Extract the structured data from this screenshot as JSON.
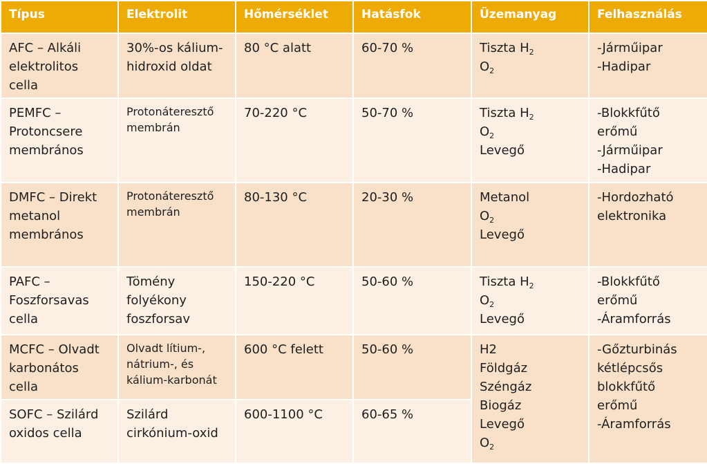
{
  "headers": [
    "Típus",
    "Elektrolit",
    "Hőmérséklet",
    "Hatásfok",
    "Üzemanyag",
    "Felhasználás"
  ],
  "rows": [
    {
      "tipus": [
        "AFC – Alkáli",
        "elektrolitos",
        "cella"
      ],
      "elektrolit": [
        "30%-os kálium-",
        "hidroxid oldat"
      ],
      "homerseklet": "80 °C alatt",
      "hatasfok": "60-70 %",
      "uzemanyag": [
        {
          "text": "Tiszta H",
          "sub": "2"
        },
        {
          "text": "O",
          "sub": "2"
        }
      ],
      "felhasznalas": [
        "-Járműipar",
        "-Hadipar"
      ]
    },
    {
      "tipus": [
        "PEMFC –",
        "Protoncsere",
        "membrános"
      ],
      "elektrolit": [
        "Protonáteresztő",
        "membrán"
      ],
      "homerseklet": "70-220 °C",
      "hatasfok": "50-70 %",
      "uzemanyag": [
        {
          "text": "Tiszta H",
          "sub": "2"
        },
        {
          "text": "O",
          "sub": "2"
        },
        {
          "text": "Levegő",
          "sub": ""
        }
      ],
      "felhasznalas": [
        "-Blokkfűtő",
        "erőmű",
        "-Járműipar",
        "-Hadipar"
      ]
    },
    {
      "tipus": [
        "DMFC – Direkt",
        "metanol",
        "membrános"
      ],
      "elektrolit": [
        "Protonáteresztő",
        "membrán"
      ],
      "homerseklet": "80-130 °C",
      "hatasfok": "20-30 %",
      "uzemanyag": [
        {
          "text": "Metanol",
          "sub": ""
        },
        {
          "text": "O",
          "sub": "2"
        },
        {
          "text": "Levegő",
          "sub": ""
        }
      ],
      "felhasznalas": [
        "-Hordozható",
        "elektronika"
      ]
    },
    {
      "tipus": [
        "PAFC –",
        "Foszforsavas",
        "cella"
      ],
      "elektrolit": [
        "Tömény",
        "folyékony",
        "foszforsav"
      ],
      "homerseklet": "150-220 °C",
      "hatasfok": "50-60 %",
      "uzemanyag": [
        {
          "text": "Tiszta H",
          "sub": "2"
        },
        {
          "text": "O",
          "sub": "2"
        },
        {
          "text": "Levegő",
          "sub": ""
        }
      ],
      "felhasznalas": [
        "-Blokkfűtő",
        "erőmű",
        "-Áramforrás"
      ]
    },
    {
      "tipus": [
        "MCFC – Olvadt",
        "karbonátos",
        "cella"
      ],
      "elektrolit": [
        "Olvadt lítium-,",
        "nátrium-, és",
        "kálium-karbonát"
      ],
      "homerseklet": "600 °C felett",
      "hatasfok": "50-60 %"
    },
    {
      "tipus": [
        "SOFC – Szilárd",
        "oxidos cella"
      ],
      "elektrolit": [
        "Szilárd",
        "cirkónium-oxid"
      ],
      "homerseklet": "600-1100 °C",
      "hatasfok": "60-65 %"
    }
  ],
  "shared_uzemanyag": [
    {
      "text": "H2",
      "sub": ""
    },
    {
      "text": "Földgáz",
      "sub": ""
    },
    {
      "text": "Széngáz",
      "sub": ""
    },
    {
      "text": "Biogáz",
      "sub": ""
    },
    {
      "text": "Levegő",
      "sub": ""
    },
    {
      "text": "O",
      "sub": "2"
    }
  ],
  "shared_felhasznalas": [
    "-Gőzturbinás",
    "kétlépcsős",
    "blokkfűtő",
    "erőmű",
    "-Áramforrás"
  ],
  "colors": {
    "header": "#eeab06",
    "band_dark": "#f8e1c8",
    "band_light": "#fcf0e4"
  }
}
